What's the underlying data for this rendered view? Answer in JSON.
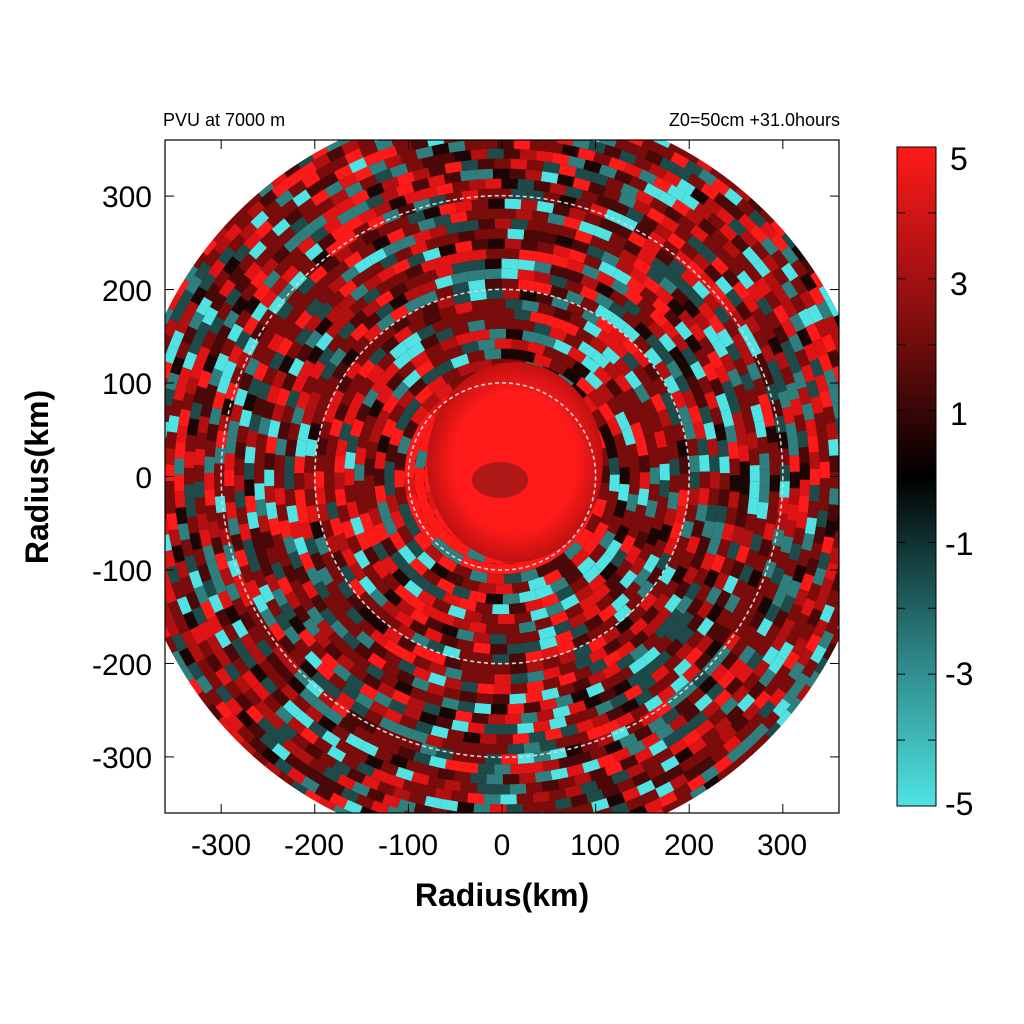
{
  "chart_data": {
    "type": "heatmap",
    "title_left": "PVU at  7000 m",
    "title_right": "Z0=50cm  +31.0hours",
    "xlabel": "Radius(km)",
    "ylabel": "Radius(km)",
    "xlim": [
      -360,
      360
    ],
    "ylim": [
      -360,
      360
    ],
    "x_ticks": [
      "-300",
      "-200",
      "-100",
      "0",
      "100",
      "200",
      "300"
    ],
    "y_ticks": [
      "300",
      "200",
      "100",
      "0",
      "-100",
      "-200",
      "-300"
    ],
    "x_tick_values": [
      -300,
      -200,
      -100,
      0,
      100,
      200,
      300
    ],
    "y_tick_values": [
      300,
      200,
      100,
      0,
      -100,
      -200,
      -300
    ],
    "range_rings_km": [
      100,
      200,
      300
    ],
    "data_domain_radius_km": 400,
    "colorbar": {
      "min": -5,
      "max": 5,
      "labels": [
        "5",
        "3",
        "1",
        "-1",
        "-3",
        "-5"
      ],
      "label_values": [
        5,
        3,
        1,
        -1,
        -3,
        -5
      ],
      "colors": {
        "low": "#4fe3e3",
        "mid": "#000000",
        "high": "#ff1a1a"
      }
    },
    "grid": false
  }
}
